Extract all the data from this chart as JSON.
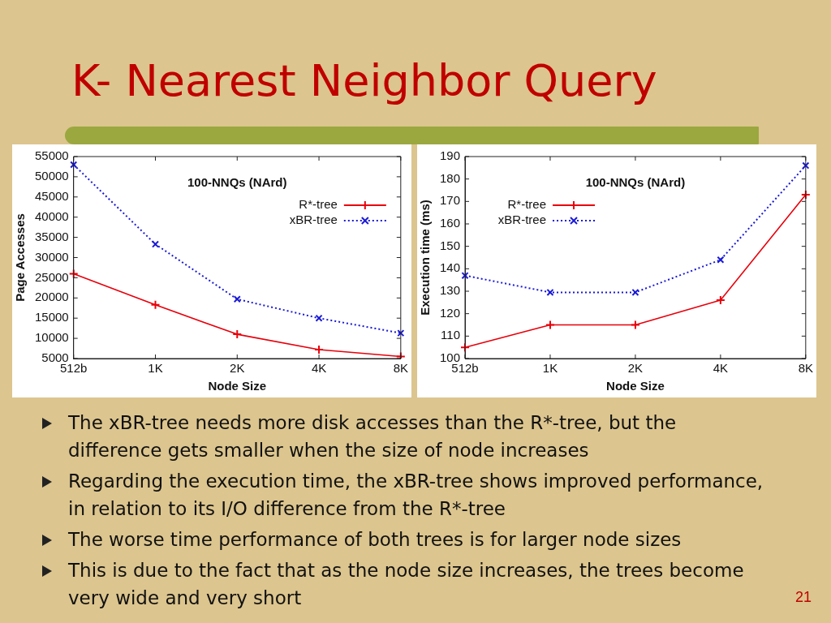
{
  "chart_data": [
    {
      "type": "line",
      "title": "100-NNQs (NArd)",
      "xlabel": "Node Size",
      "ylabel": "Page Accesses",
      "categories": [
        "512b",
        "1K",
        "2K",
        "4K",
        "8K"
      ],
      "series": [
        {
          "name": "R*-tree",
          "color": "#e8000b",
          "marker": "cross",
          "line_style": "solid",
          "values": [
            26000,
            18300,
            11000,
            7200,
            5500
          ]
        },
        {
          "name": "xBR-tree",
          "color": "#1a1ad6",
          "marker": "x",
          "line_style": "dotted",
          "values": [
            53000,
            33300,
            19700,
            15000,
            11300
          ]
        }
      ],
      "ylim": [
        5000,
        55000
      ],
      "yticks": [
        5000,
        10000,
        15000,
        20000,
        25000,
        30000,
        35000,
        40000,
        45000,
        50000,
        55000
      ],
      "grid": false,
      "legend": "top right"
    },
    {
      "type": "line",
      "title": "100-NNQs (NArd)",
      "xlabel": "Node Size",
      "ylabel": "Execution time (ms)",
      "categories": [
        "512b",
        "1K",
        "2K",
        "4K",
        "8K"
      ],
      "series": [
        {
          "name": "R*-tree",
          "color": "#e8000b",
          "marker": "cross",
          "line_style": "solid",
          "values": [
            105,
            115,
            115,
            126,
            173
          ]
        },
        {
          "name": "xBR-tree",
          "color": "#1a1ad6",
          "marker": "x",
          "line_style": "dotted",
          "values": [
            137,
            129.5,
            129.5,
            144,
            186
          ]
        }
      ],
      "ylim": [
        100,
        190
      ],
      "yticks": [
        100,
        110,
        120,
        130,
        140,
        150,
        160,
        170,
        180,
        190
      ],
      "grid": false,
      "legend": "top left"
    },
    {
      "type": "other",
      "title": "K- Nearest Neighbor Query",
      "annotations": [
        "The xBR-tree needs more disk accesses than the R*-tree, but the difference gets smaller when the size of node increases",
        "Regarding the execution time, the xBR-tree shows improved performance, in relation to its I/O difference from the R*-tree",
        "The worse time performance of both trees is for larger node sizes",
        "This is due to the fact that as the node size increases, the trees become very wide and very short",
        "21"
      ]
    }
  ]
}
